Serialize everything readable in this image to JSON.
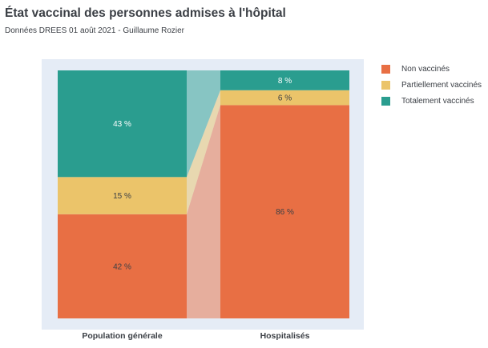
{
  "header": {
    "title": "État vaccinal des personnes admises à l'hôpital",
    "subtitle": "Données DREES 01 août 2021 - Guillaume Rozier"
  },
  "colors": {
    "plot_background": "#e5ecf6",
    "non_vaccines": "#e86f44",
    "partiellement_vaccines": "#ebc46a",
    "totalement_vaccines": "#2a9d8f"
  },
  "chart_data": {
    "type": "bar",
    "stacked": true,
    "normalized": true,
    "categories": [
      "Population générale",
      "Hospitalisés"
    ],
    "series": [
      {
        "name": "Non vaccinés",
        "values": [
          42,
          86
        ],
        "labels": [
          "42 %",
          "86 %"
        ],
        "color": "#e86f44"
      },
      {
        "name": "Partiellement vaccinés",
        "values": [
          15,
          6
        ],
        "labels": [
          "15 %",
          "6 %"
        ],
        "color": "#ebc46a"
      },
      {
        "name": "Totalement vaccinés",
        "values": [
          43,
          8
        ],
        "labels": [
          "43 %",
          "8 %"
        ],
        "color": "#2a9d8f"
      }
    ],
    "ylim": [
      0,
      100
    ],
    "connectors": true,
    "legend_position": "top-right"
  }
}
